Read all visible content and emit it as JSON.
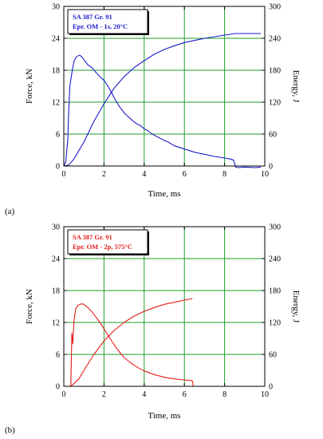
{
  "chart_data": [
    {
      "type": "line",
      "panel_label": "(a)",
      "xlabel": "Time, ms",
      "ylabel_left": "Force, kN",
      "ylabel_right": "Energy, J",
      "xlim": [
        0,
        10
      ],
      "ylim_left": [
        0,
        30
      ],
      "ylim_right": [
        0,
        300
      ],
      "x_ticks": [
        "0",
        "2",
        "4",
        "6",
        "8",
        "10"
      ],
      "y_ticks_left": [
        "0",
        "6",
        "12",
        "18",
        "24",
        "30"
      ],
      "y_ticks_right": [
        "0",
        "60",
        "120",
        "180",
        "240",
        "300"
      ],
      "grid": true,
      "color": "#1a1acc",
      "legend": {
        "placement": "top-left",
        "lines": [
          "SA 387 Gr. 91",
          "Epr. OM - 1s,  20°C"
        ]
      },
      "series": [
        {
          "axis": "left",
          "x": [
            0,
            0.1,
            0.2,
            0.25,
            0.3,
            0.4,
            0.5,
            0.6,
            0.7,
            0.8,
            0.9,
            1.0,
            1.1,
            1.2,
            1.4,
            1.6,
            1.8,
            2.0,
            2.2,
            2.4,
            2.6,
            2.8,
            3.0,
            3.2,
            3.4,
            3.6,
            3.8,
            4.0,
            4.2,
            4.4,
            4.6,
            4.8,
            5.0,
            5.2,
            5.5,
            6.0,
            6.5,
            7.0,
            7.5,
            8.0,
            8.3,
            8.45,
            8.55,
            8.7,
            9.0,
            9.5,
            9.8
          ],
          "y": [
            0,
            0.8,
            5,
            11,
            15,
            17.5,
            19.6,
            20.4,
            20.7,
            20.8,
            20.5,
            20.0,
            19.5,
            19.0,
            18.5,
            17.6,
            16.8,
            16.1,
            15.0,
            13.6,
            12.2,
            11.0,
            10.0,
            9.3,
            8.6,
            8.0,
            7.6,
            7.0,
            6.6,
            6.0,
            5.6,
            5.2,
            4.8,
            4.5,
            3.8,
            3.2,
            2.6,
            2.2,
            1.8,
            1.5,
            1.3,
            1.1,
            -0.2,
            -0.3,
            -0.2,
            -0.3,
            -0.2
          ]
        },
        {
          "axis": "right",
          "x": [
            0,
            0.25,
            0.5,
            0.75,
            1.0,
            1.5,
            2.0,
            2.5,
            3.0,
            3.5,
            4.0,
            4.5,
            5.0,
            5.5,
            6.0,
            6.5,
            7.0,
            7.5,
            8.0,
            8.5,
            9.0,
            9.5,
            9.8
          ],
          "y": [
            0,
            2,
            13,
            29,
            45,
            84,
            117,
            146,
            168,
            185,
            198,
            210,
            219,
            226,
            232,
            236,
            240,
            243,
            246,
            249,
            249,
            249,
            249
          ]
        }
      ]
    },
    {
      "type": "line",
      "panel_label": "(b)",
      "xlabel": "Time, ms",
      "ylabel_left": "Force, kN",
      "ylabel_right": "Energy, J",
      "xlim": [
        0,
        10
      ],
      "ylim_left": [
        0,
        30
      ],
      "ylim_right": [
        0,
        300
      ],
      "x_ticks": [
        "0",
        "2",
        "4",
        "6",
        "8",
        "10"
      ],
      "y_ticks_left": [
        "0",
        "6",
        "12",
        "18",
        "24",
        "30"
      ],
      "y_ticks_right": [
        "0",
        "60",
        "120",
        "180",
        "240",
        "300"
      ],
      "grid": true,
      "color": "#e61a1a",
      "legend": {
        "placement": "top-left",
        "lines": [
          "SA 387 Gr. 91",
          "Epr. OM - 2p,  575°C"
        ]
      },
      "series": [
        {
          "axis": "left",
          "x": [
            0,
            0.35,
            0.4,
            0.45,
            0.5,
            0.55,
            0.6,
            0.7,
            0.8,
            0.9,
            1.0,
            1.1,
            1.2,
            1.4,
            1.6,
            1.8,
            2.0,
            2.2,
            2.4,
            2.6,
            2.8,
            3.0,
            3.3,
            3.6,
            4.0,
            4.5,
            5.0,
            5.5,
            6.0,
            6.3,
            6.4,
            6.45
          ],
          "y": [
            0,
            0,
            10,
            8,
            12,
            13.5,
            14.6,
            15.2,
            15.4,
            15.5,
            15.4,
            15.1,
            14.8,
            14.0,
            13.0,
            12.0,
            10.8,
            9.6,
            8.4,
            7.3,
            6.3,
            5.4,
            4.5,
            3.7,
            2.9,
            2.2,
            1.7,
            1.4,
            1.2,
            1.1,
            1.0,
            -0.1
          ]
        },
        {
          "axis": "right",
          "x": [
            0.35,
            0.5,
            0.75,
            1.0,
            1.25,
            1.5,
            2.0,
            2.5,
            3.0,
            3.5,
            4.0,
            4.5,
            5.0,
            5.5,
            6.0,
            6.4
          ],
          "y": [
            0,
            5,
            14,
            30,
            45,
            60,
            85,
            105,
            120,
            132,
            141,
            148,
            154,
            158,
            162,
            165
          ]
        }
      ]
    }
  ]
}
